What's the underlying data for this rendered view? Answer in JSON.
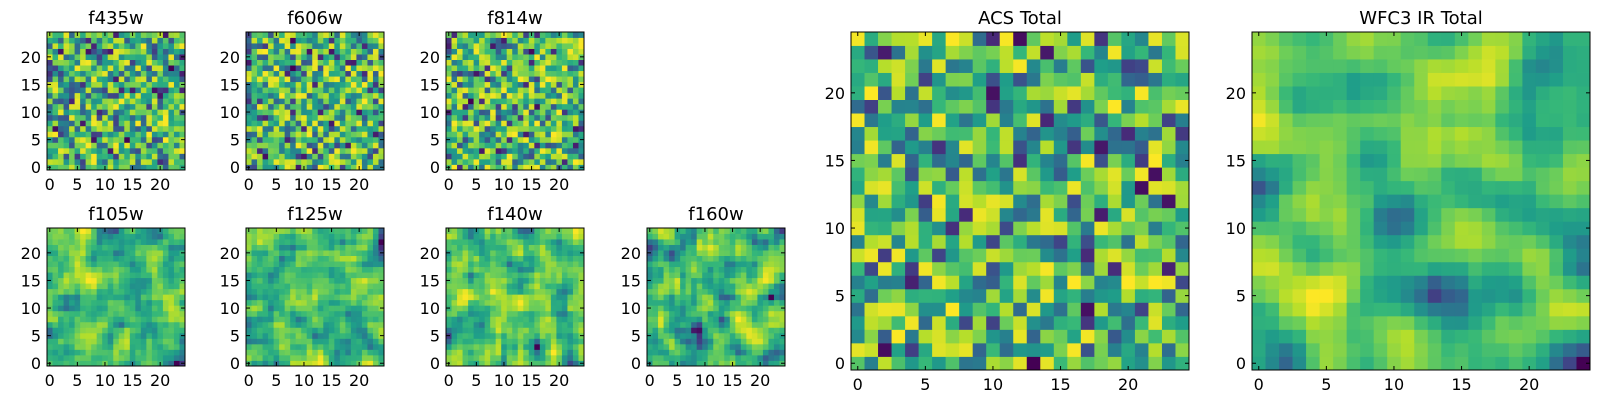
{
  "figure": {
    "colormap": "viridis",
    "background": "#ffffff"
  },
  "chart_data": [
    {
      "type": "heatmap",
      "title": "f435w",
      "grid_size": [
        25,
        25
      ],
      "xlim": [
        0,
        24
      ],
      "ylim": [
        0,
        24
      ],
      "xticks": [
        "0",
        "5",
        "10",
        "15",
        "20"
      ],
      "yticks": [
        "0",
        "5",
        "10",
        "15",
        "20"
      ],
      "seed": 11,
      "smooth": 0,
      "value_range": [
        0,
        1
      ]
    },
    {
      "type": "heatmap",
      "title": "f606w",
      "grid_size": [
        25,
        25
      ],
      "xlim": [
        0,
        24
      ],
      "ylim": [
        0,
        24
      ],
      "xticks": [
        "0",
        "5",
        "10",
        "15",
        "20"
      ],
      "yticks": [
        "0",
        "5",
        "10",
        "15",
        "20"
      ],
      "seed": 23,
      "smooth": 0,
      "value_range": [
        0,
        1
      ]
    },
    {
      "type": "heatmap",
      "title": "f814w",
      "grid_size": [
        25,
        25
      ],
      "xlim": [
        0,
        24
      ],
      "ylim": [
        0,
        24
      ],
      "xticks": [
        "0",
        "5",
        "10",
        "15",
        "20"
      ],
      "yticks": [
        "0",
        "5",
        "10",
        "15",
        "20"
      ],
      "seed": 37,
      "smooth": 0,
      "value_range": [
        0,
        1
      ]
    },
    {
      "type": "heatmap",
      "title": "f105w",
      "grid_size": [
        25,
        25
      ],
      "xlim": [
        0,
        24
      ],
      "ylim": [
        0,
        24
      ],
      "xticks": [
        "0",
        "5",
        "10",
        "15",
        "20"
      ],
      "yticks": [
        "0",
        "5",
        "10",
        "15",
        "20"
      ],
      "seed": 41,
      "smooth": 1,
      "value_range": [
        0,
        1
      ]
    },
    {
      "type": "heatmap",
      "title": "f125w",
      "grid_size": [
        25,
        25
      ],
      "xlim": [
        0,
        24
      ],
      "ylim": [
        0,
        24
      ],
      "xticks": [
        "0",
        "5",
        "10",
        "15",
        "20"
      ],
      "yticks": [
        "0",
        "5",
        "10",
        "15",
        "20"
      ],
      "seed": 53,
      "smooth": 1,
      "value_range": [
        0,
        1
      ]
    },
    {
      "type": "heatmap",
      "title": "f140w",
      "grid_size": [
        25,
        25
      ],
      "xlim": [
        0,
        24
      ],
      "ylim": [
        0,
        24
      ],
      "xticks": [
        "0",
        "5",
        "10",
        "15",
        "20"
      ],
      "yticks": [
        "0",
        "5",
        "10",
        "15",
        "20"
      ],
      "seed": 67,
      "smooth": 1,
      "value_range": [
        0,
        1
      ]
    },
    {
      "type": "heatmap",
      "title": "f160w",
      "grid_size": [
        25,
        25
      ],
      "xlim": [
        0,
        24
      ],
      "ylim": [
        0,
        24
      ],
      "xticks": [
        "0",
        "5",
        "10",
        "15",
        "20"
      ],
      "yticks": [
        "0",
        "5",
        "10",
        "15",
        "20"
      ],
      "seed": 79,
      "smooth": 1,
      "value_range": [
        0,
        1
      ]
    },
    {
      "type": "heatmap",
      "title": "ACS Total",
      "grid_size": [
        25,
        25
      ],
      "xlim": [
        0,
        24
      ],
      "ylim": [
        0,
        24
      ],
      "xticks": [
        "0",
        "5",
        "10",
        "15",
        "20"
      ],
      "yticks": [
        "0",
        "5",
        "10",
        "15",
        "20"
      ],
      "seed": 97,
      "smooth": 0,
      "value_range": [
        0,
        1
      ]
    },
    {
      "type": "heatmap",
      "title": "WFC3 IR Total",
      "grid_size": [
        25,
        25
      ],
      "xlim": [
        0,
        24
      ],
      "ylim": [
        0,
        24
      ],
      "xticks": [
        "0",
        "5",
        "10",
        "15",
        "20"
      ],
      "yticks": [
        "0",
        "5",
        "10",
        "15",
        "20"
      ],
      "seed": 131,
      "smooth": 2,
      "value_range": [
        0,
        1
      ]
    }
  ]
}
